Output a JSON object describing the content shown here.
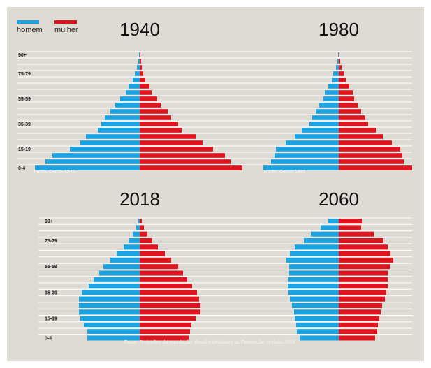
{
  "legend": {
    "men_label": "homem",
    "women_label": "mulher"
  },
  "colors": {
    "men": "#1aa3e0",
    "women": "#e0141e",
    "background": "#dddbd4",
    "grid": "#ffffff"
  },
  "footnotes": {
    "top_left": "Fonte: Censo 1940",
    "top_right": "Fonte: Censo 1980",
    "bottom": "Fonte: Projeções da população: Brasil e Unidades da Federação: revisão 2018"
  },
  "chart_data": [
    {
      "type": "bar",
      "title": "1940",
      "categories": [
        "0-4",
        "5-9",
        "10-14",
        "15-19",
        "20-24",
        "25-29",
        "30-34",
        "35-39",
        "40-44",
        "45-49",
        "50-54",
        "55-59",
        "60-64",
        "65-69",
        "70-74",
        "75-79",
        "80-84",
        "85-89",
        "90+"
      ],
      "tick_labels": [
        "0-4",
        "15-19",
        "35-39",
        "55-59",
        "75-79",
        "90+"
      ],
      "series": [
        {
          "name": "homem",
          "values": [
            150,
            135,
            125,
            100,
            85,
            77,
            60,
            55,
            50,
            42,
            35,
            28,
            20,
            16,
            10,
            7,
            4,
            2,
            1
          ]
        },
        {
          "name": "mulher",
          "values": [
            147,
            130,
            122,
            105,
            90,
            80,
            60,
            55,
            45,
            40,
            30,
            25,
            17,
            14,
            8,
            5,
            3,
            2,
            1
          ]
        }
      ]
    },
    {
      "type": "bar",
      "title": "1980",
      "categories": [
        "0-4",
        "5-9",
        "10-14",
        "15-19",
        "20-24",
        "25-29",
        "30-34",
        "35-39",
        "40-44",
        "45-49",
        "50-54",
        "55-59",
        "60-64",
        "65-69",
        "70-74",
        "75-79",
        "80-84",
        "85-89",
        "90+"
      ],
      "tick_labels": [
        "0-4",
        "15-19",
        "35-39",
        "55-59",
        "75-79",
        "90+"
      ],
      "series": [
        {
          "name": "homem",
          "values": [
            108,
            97,
            92,
            90,
            76,
            63,
            53,
            42,
            38,
            33,
            28,
            22,
            20,
            15,
            10,
            8,
            4,
            2,
            1
          ]
        },
        {
          "name": "mulher",
          "values": [
            105,
            93,
            91,
            88,
            76,
            63,
            53,
            42,
            38,
            32,
            27,
            22,
            20,
            15,
            10,
            7,
            4,
            2,
            1
          ]
        }
      ]
    },
    {
      "type": "bar",
      "title": "2018",
      "categories": [
        "0-4",
        "5-9",
        "10-14",
        "15-19",
        "20-24",
        "25-29",
        "30-34",
        "35-39",
        "40-44",
        "45-49",
        "50-54",
        "55-59",
        "60-64",
        "65-69",
        "70-74",
        "75-79",
        "80-84",
        "85-89",
        "90+"
      ],
      "tick_labels": [
        "0-4",
        "15-19",
        "35-39",
        "55-59",
        "75-79",
        "90+"
      ],
      "series": [
        {
          "name": "homem",
          "values": [
            75,
            75,
            80,
            85,
            87,
            87,
            87,
            83,
            73,
            66,
            58,
            52,
            42,
            33,
            23,
            16,
            10,
            5,
            2
          ]
        },
        {
          "name": "mulher",
          "values": [
            70,
            72,
            74,
            80,
            87,
            87,
            85,
            82,
            75,
            68,
            62,
            55,
            45,
            36,
            26,
            18,
            11,
            6,
            3
          ]
        }
      ]
    },
    {
      "type": "bar",
      "title": "2060",
      "categories": [
        "0-4",
        "5-9",
        "10-14",
        "15-19",
        "20-24",
        "25-29",
        "30-34",
        "35-39",
        "40-44",
        "45-49",
        "50-54",
        "55-59",
        "60-64",
        "65-69",
        "70-74",
        "75-79",
        "80-84",
        "85-89",
        "90+"
      ],
      "tick_labels": [
        "0-4",
        "15-19",
        "35-39",
        "55-59",
        "75-79",
        "90+"
      ],
      "series": [
        {
          "name": "homem",
          "values": [
            56,
            60,
            61,
            63,
            64,
            67,
            70,
            72,
            73,
            72,
            71,
            71,
            75,
            70,
            63,
            50,
            40,
            26,
            15
          ]
        },
        {
          "name": "mulher",
          "values": [
            52,
            55,
            56,
            58,
            60,
            62,
            66,
            68,
            70,
            70,
            70,
            73,
            78,
            74,
            70,
            64,
            50,
            32,
            33
          ]
        }
      ]
    }
  ]
}
